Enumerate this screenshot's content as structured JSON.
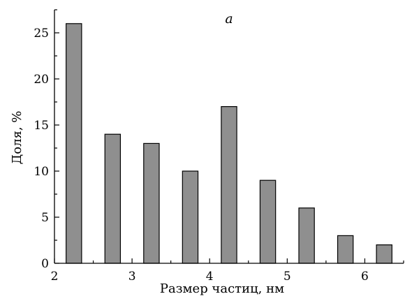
{
  "chart_data": {
    "type": "bar",
    "panel_label": "a",
    "xlabel": "Размер частиц, нм",
    "ylabel": "Доля, %",
    "xlim": [
      2,
      6.5
    ],
    "ylim": [
      0,
      27.5
    ],
    "xticks": [
      2,
      3,
      4,
      5,
      6
    ],
    "yticks": [
      0,
      5,
      10,
      15,
      20,
      25
    ],
    "x": [
      2.25,
      2.75,
      3.25,
      3.75,
      4.25,
      4.75,
      5.25,
      5.75,
      6.25
    ],
    "values": [
      26,
      14,
      13,
      10,
      17,
      9,
      6,
      3,
      2
    ],
    "bar_color": "#8f8f8f",
    "grid": false
  }
}
